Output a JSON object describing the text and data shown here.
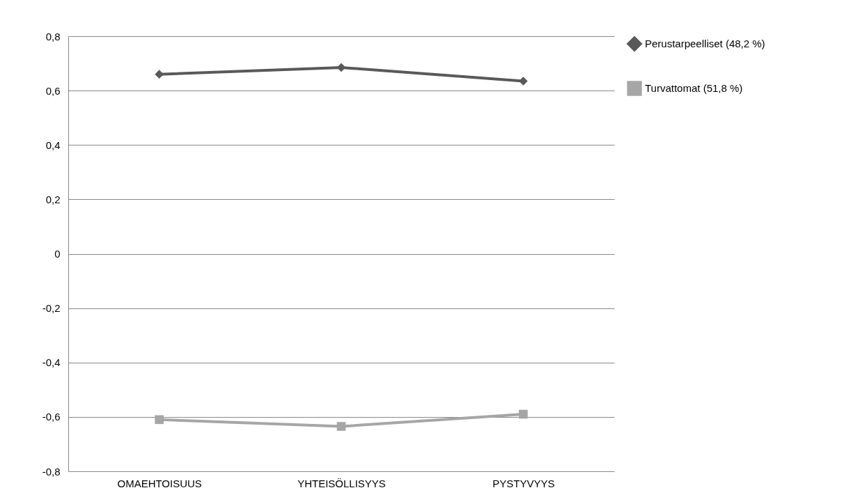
{
  "chart_data": {
    "type": "line",
    "categories": [
      "OMAEHTOISUUS",
      "YHTEISÖLLISYYS",
      "PYSTYVYYS"
    ],
    "series": [
      {
        "name": "Perustarpeelliset (48,2 %)",
        "color": "#595959",
        "marker": "diamond",
        "values": [
          0.66,
          0.685,
          0.635
        ]
      },
      {
        "name": "Turvattomat (51,8 %)",
        "color": "#a6a6a6",
        "marker": "square",
        "values": [
          -0.61,
          -0.635,
          -0.59
        ]
      }
    ],
    "ylim": [
      -0.8,
      0.8
    ],
    "yticks": [
      {
        "value": -0.8,
        "label": "-0,8"
      },
      {
        "value": -0.6,
        "label": "-0,6"
      },
      {
        "value": -0.4,
        "label": "-0,4"
      },
      {
        "value": -0.2,
        "label": "-0,2"
      },
      {
        "value": 0,
        "label": "0"
      },
      {
        "value": 0.2,
        "label": "0,2"
      },
      {
        "value": 0.4,
        "label": "0,4"
      },
      {
        "value": 0.6,
        "label": "0,6"
      },
      {
        "value": 0.8,
        "label": "0,8"
      }
    ],
    "grid": "y",
    "legend": "right",
    "line_style": "solid"
  }
}
